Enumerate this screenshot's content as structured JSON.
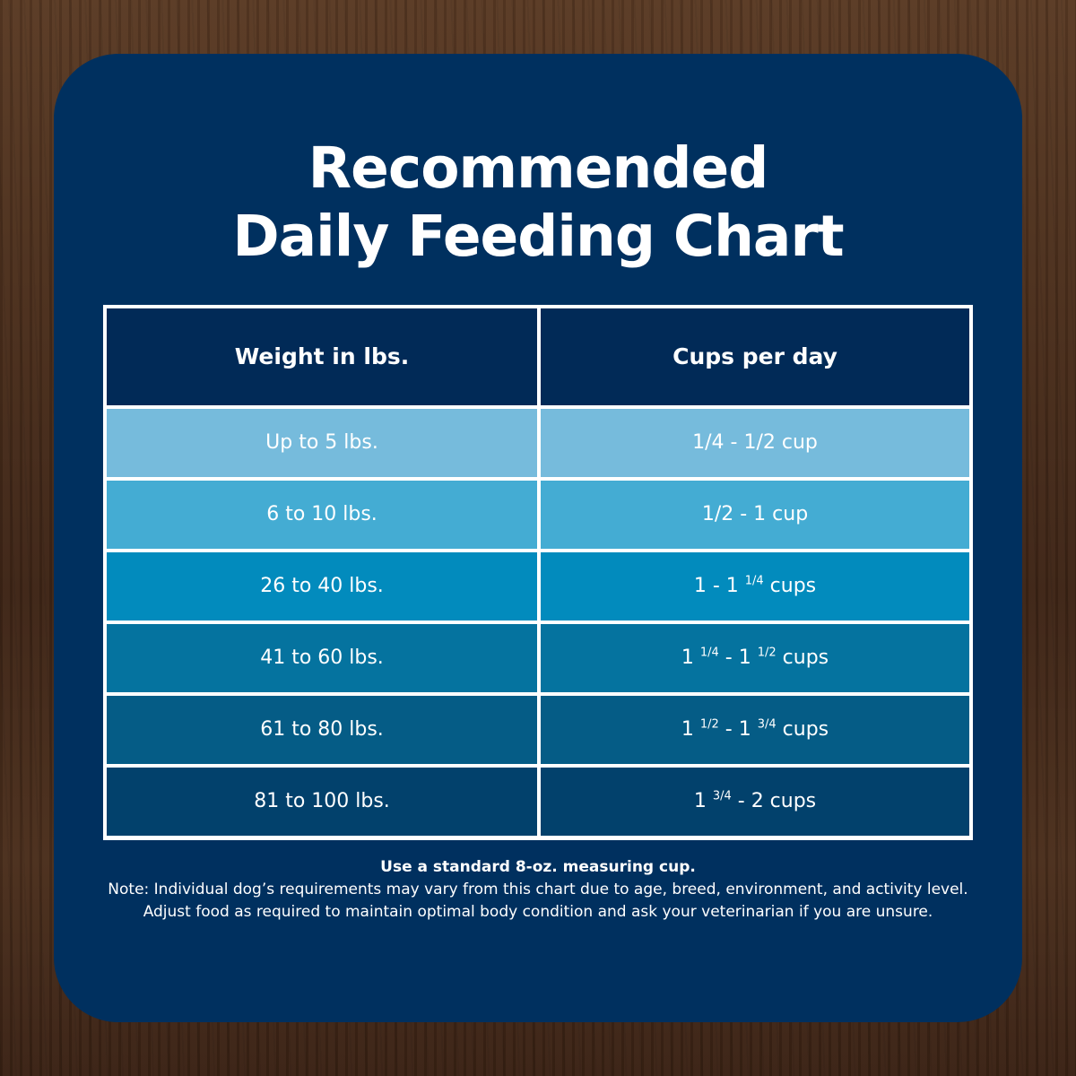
{
  "title_line1": "Recommended",
  "title_line2": "Daily Feeding Chart",
  "chart_data": {
    "type": "table",
    "columns": [
      "Weight in lbs.",
      "Cups per day"
    ],
    "rows": [
      {
        "weight": "Up to 5 lbs.",
        "cups": "1/4 - 1/2 cup",
        "color": "#76bbdc"
      },
      {
        "weight": "6 to 10 lbs.",
        "cups": "1/2 - 1 cup",
        "color": "#44acd3"
      },
      {
        "weight": "26 to 40 lbs.",
        "cups": "1 - 1 1/4 cups",
        "color": "#028bbd"
      },
      {
        "weight": "41 to 60 lbs.",
        "cups": "1 1/4 - 1 1/2 cups",
        "color": "#05739f"
      },
      {
        "weight": "61 to 80 lbs.",
        "cups": "1 1/2 - 1 3/4 cups",
        "color": "#055c86"
      },
      {
        "weight": "81 to 100 lbs.",
        "cups": "1 3/4 - 2 cups",
        "color": "#02416c"
      }
    ]
  },
  "measure_note": "Use a standard 8-oz. measuring cup.",
  "disclaimer": "Note: Individual dog’s requirements may vary from this chart due to age, breed, environment, and activity level. Adjust food as required to maintain optimal body condition and ask your veterinarian if you are unsure.",
  "colors": {
    "card": "#00305f",
    "header": "#012a57",
    "border": "#ffffff"
  }
}
